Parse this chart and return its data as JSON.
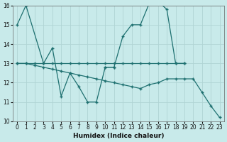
{
  "xlabel": "Humidex (Indice chaleur)",
  "xlim": [
    -0.5,
    23.5
  ],
  "ylim": [
    10,
    16
  ],
  "yticks": [
    10,
    11,
    12,
    13,
    14,
    15,
    16
  ],
  "xticks": [
    0,
    1,
    2,
    3,
    4,
    5,
    6,
    7,
    8,
    9,
    10,
    11,
    12,
    13,
    14,
    15,
    16,
    17,
    18,
    19,
    20,
    21,
    22,
    23
  ],
  "background_color": "#c8eaea",
  "grid_color": "#b0d4d4",
  "line_color": "#1e7070",
  "curves": [
    {
      "x": [
        0,
        1,
        3,
        4,
        5,
        6,
        7,
        8,
        9,
        10,
        11
      ],
      "y": [
        15,
        16,
        13,
        13.8,
        11.3,
        12.5,
        11.8,
        11.0,
        11.0,
        12.8,
        12.8
      ]
    },
    {
      "x": [
        10,
        11,
        12,
        13,
        14,
        15,
        16,
        17,
        18,
        19
      ],
      "y": [
        12.8,
        12.8,
        14.4,
        15.0,
        15.0,
        16.1,
        16.2,
        15.8,
        13.0,
        13.0
      ]
    },
    {
      "x": [
        0,
        1,
        2,
        3,
        4,
        5,
        6,
        7,
        8,
        9,
        10,
        11,
        12,
        13,
        14,
        15,
        16,
        17,
        18,
        19
      ],
      "y": [
        13,
        13,
        13,
        13,
        13,
        13,
        13,
        13,
        13,
        13,
        13,
        13,
        13,
        13,
        13,
        13,
        13,
        13,
        13,
        13
      ]
    },
    {
      "x": [
        0,
        1,
        2,
        3,
        4,
        5,
        6,
        7,
        8,
        9,
        10,
        11,
        12,
        13,
        14,
        15,
        16,
        17,
        18,
        19,
        20,
        21,
        22,
        23
      ],
      "y": [
        13,
        13,
        12.9,
        12.8,
        12.7,
        12.6,
        12.5,
        12.4,
        12.3,
        12.2,
        12.1,
        12.0,
        11.9,
        11.8,
        11.7,
        11.9,
        12.0,
        12.2,
        12.2,
        12.2,
        12.2,
        11.5,
        10.8,
        10.2
      ]
    }
  ]
}
